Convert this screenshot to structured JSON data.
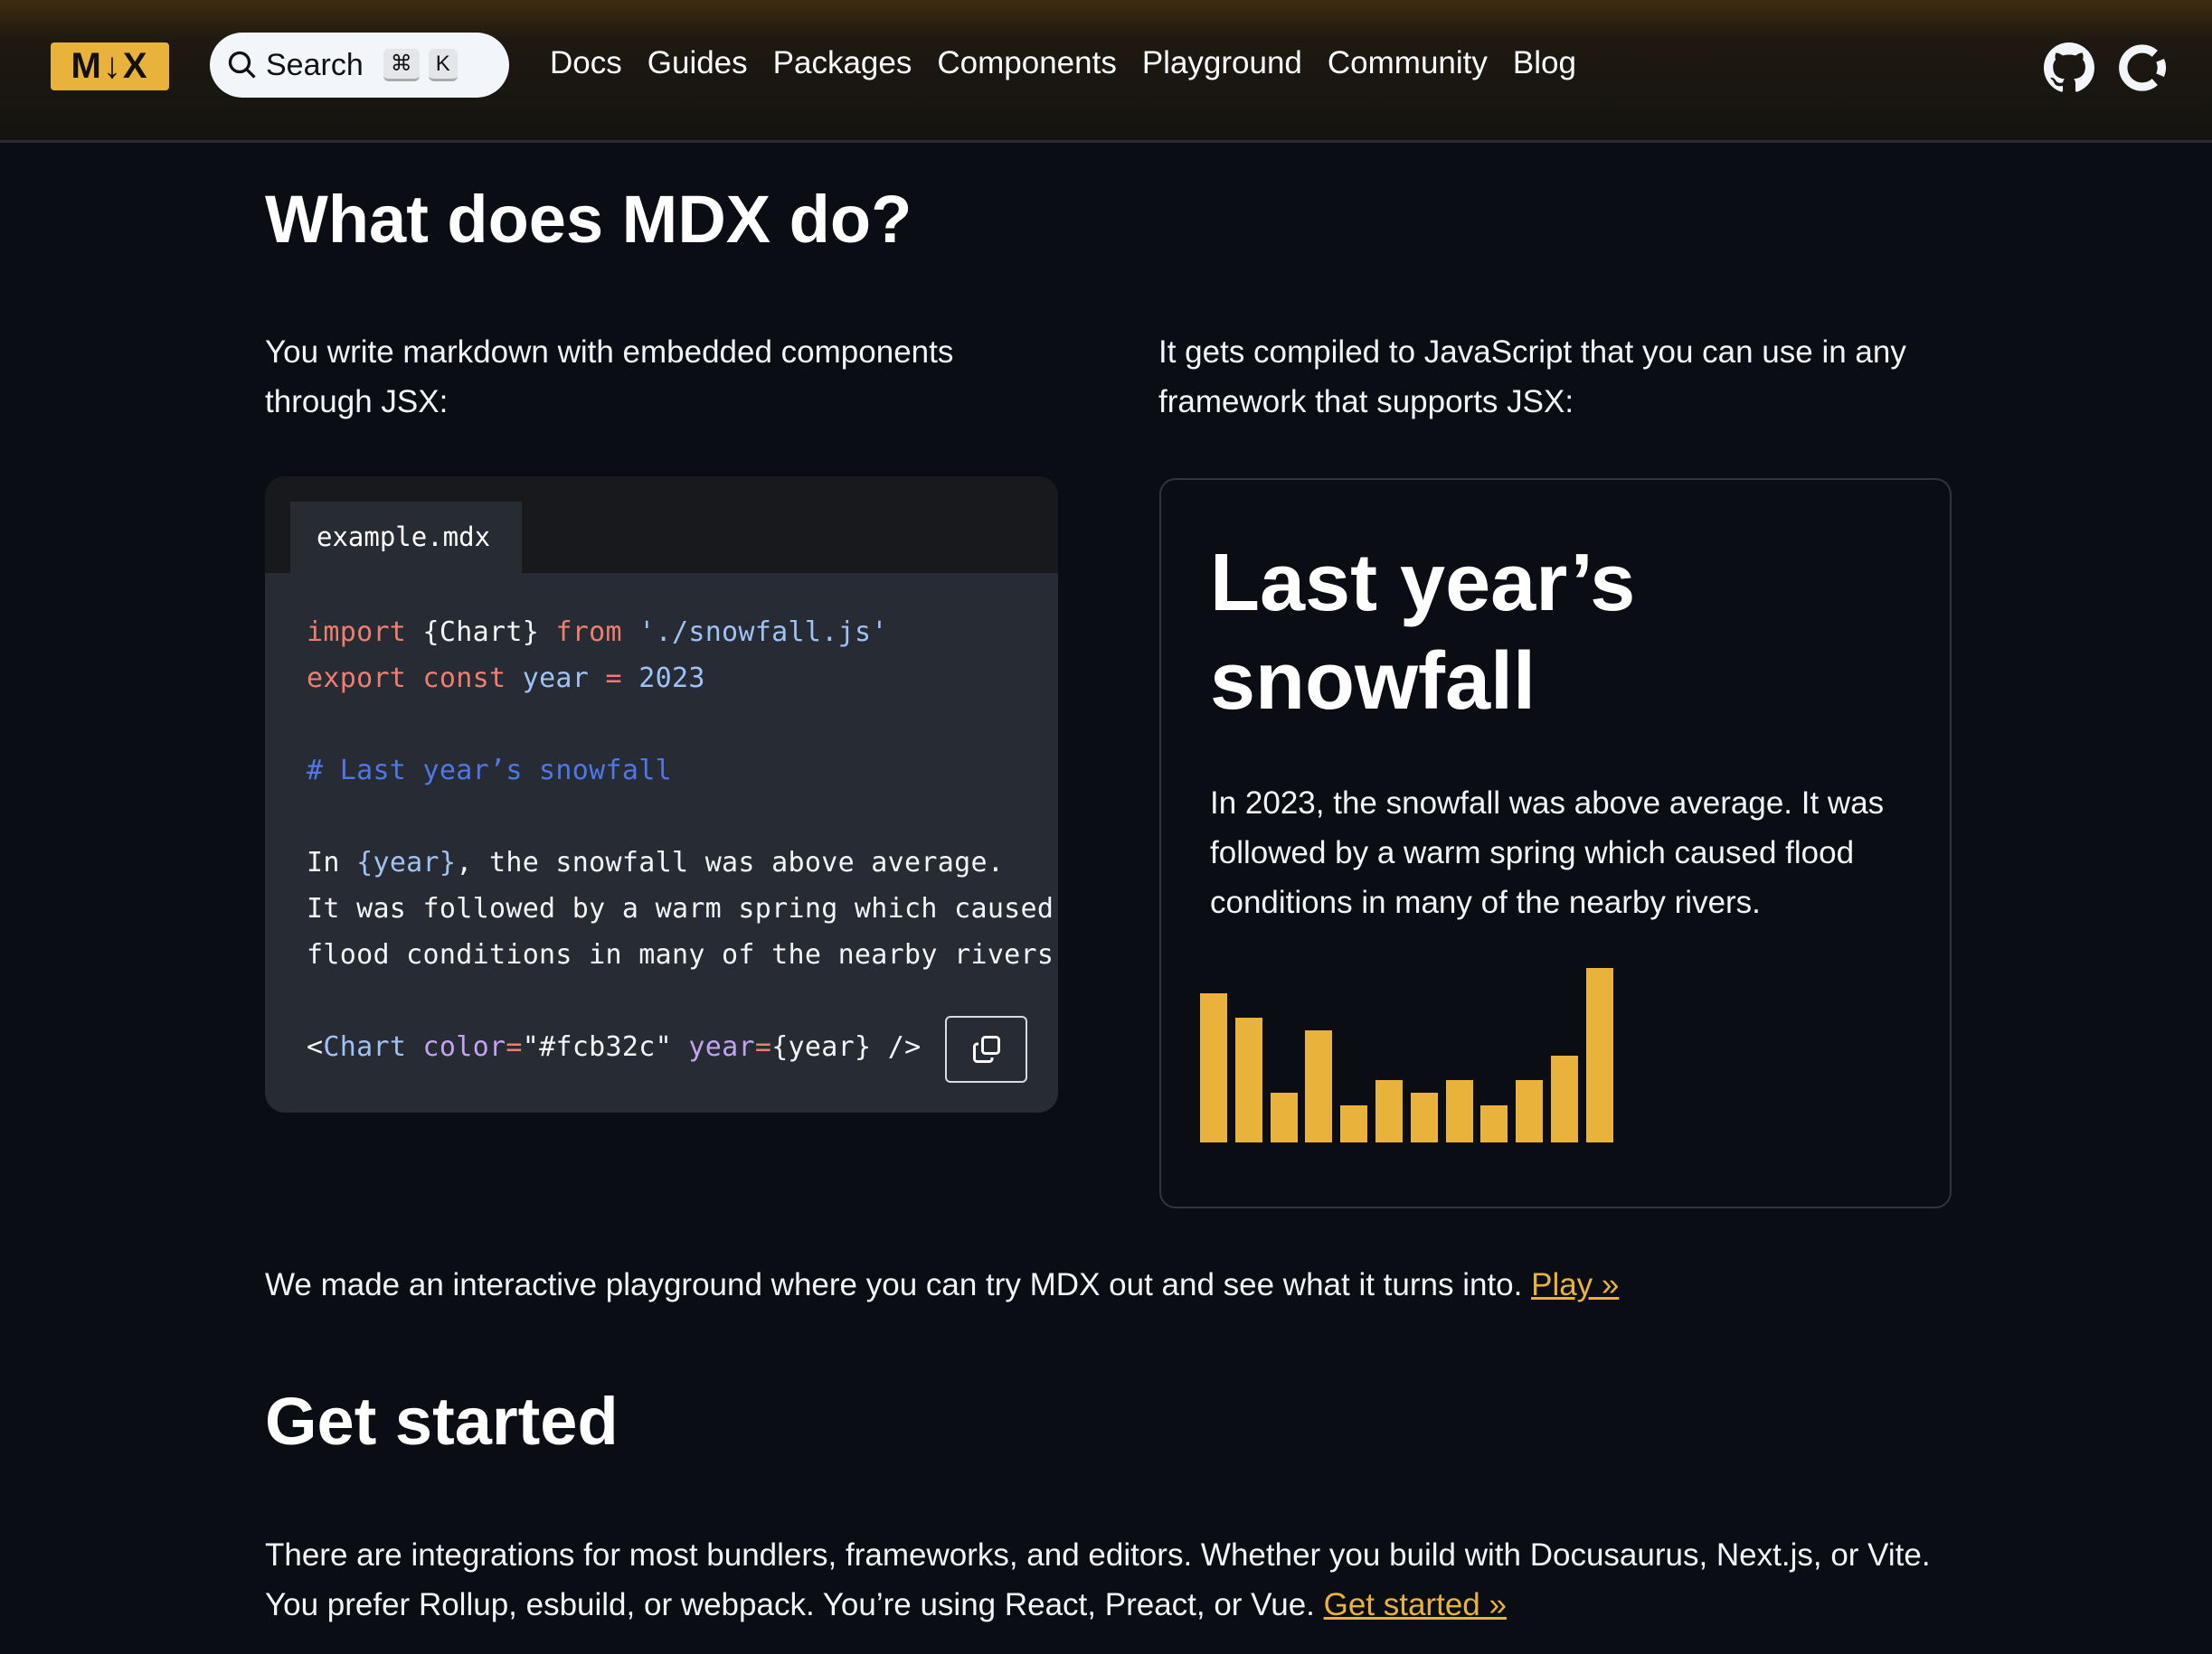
{
  "header": {
    "logo": "M↓X",
    "search": {
      "label": "Search",
      "kbd": [
        "⌘",
        "K"
      ]
    },
    "nav": [
      "Docs",
      "Guides",
      "Packages",
      "Components",
      "Playground",
      "Community",
      "Blog"
    ],
    "icons": [
      "github-icon",
      "opencollective-icon"
    ]
  },
  "section1": {
    "title": "What does MDX do?",
    "left_text": "You write markdown with embedded components through JSX:",
    "right_text": "It gets compiled to JavaScript that you can use in any framework that supports JSX:"
  },
  "code": {
    "filename": "example.mdx",
    "l1": {
      "import": "import",
      "chart": " {Chart} ",
      "from": "from",
      "path": " './snowfall.js'"
    },
    "l2": {
      "export": "export",
      "const": " const",
      "year": " year",
      "eq": " = ",
      "val": "2023"
    },
    "l3": "# Last year’s snowfall",
    "l4": {
      "pre": "In ",
      "expr": "{year}",
      "post": ", the snowfall was above average."
    },
    "l5": "It was followed by a warm spring which caused",
    "l6": "flood conditions in many of the nearby rivers.",
    "l7": {
      "lt": "<",
      "tag": "Chart",
      "attr1": " color",
      "eq1": "=",
      "str": "\"#fcb32c\"",
      "attr2": " year",
      "eq2": "=",
      "expr": "{year}",
      "end": " />"
    }
  },
  "preview": {
    "title": "Last year’s snowfall",
    "text": "In 2023, the snowfall was above average. It was followed by a warm spring which caused flood conditions in many of the nearby rivers."
  },
  "chart_data": {
    "type": "bar",
    "values": [
      12,
      10,
      4,
      9,
      3,
      5,
      4,
      5,
      3,
      5,
      7,
      14
    ],
    "ylim": [
      0,
      14
    ],
    "color": "#e9b33b",
    "grid": false,
    "axes": false
  },
  "playground": {
    "text": "We made an interactive playground where you can try MDX out and see what it turns into. ",
    "link": "Play »"
  },
  "get_started": {
    "title": "Get started",
    "text": "There are integrations for most bundlers, frameworks, and editors. Whether you build with Docusaurus, Next.js, or Vite. You prefer Rollup, esbuild, or webpack. You’re using React, Preact, or Vue. ",
    "link": "Get started »"
  }
}
